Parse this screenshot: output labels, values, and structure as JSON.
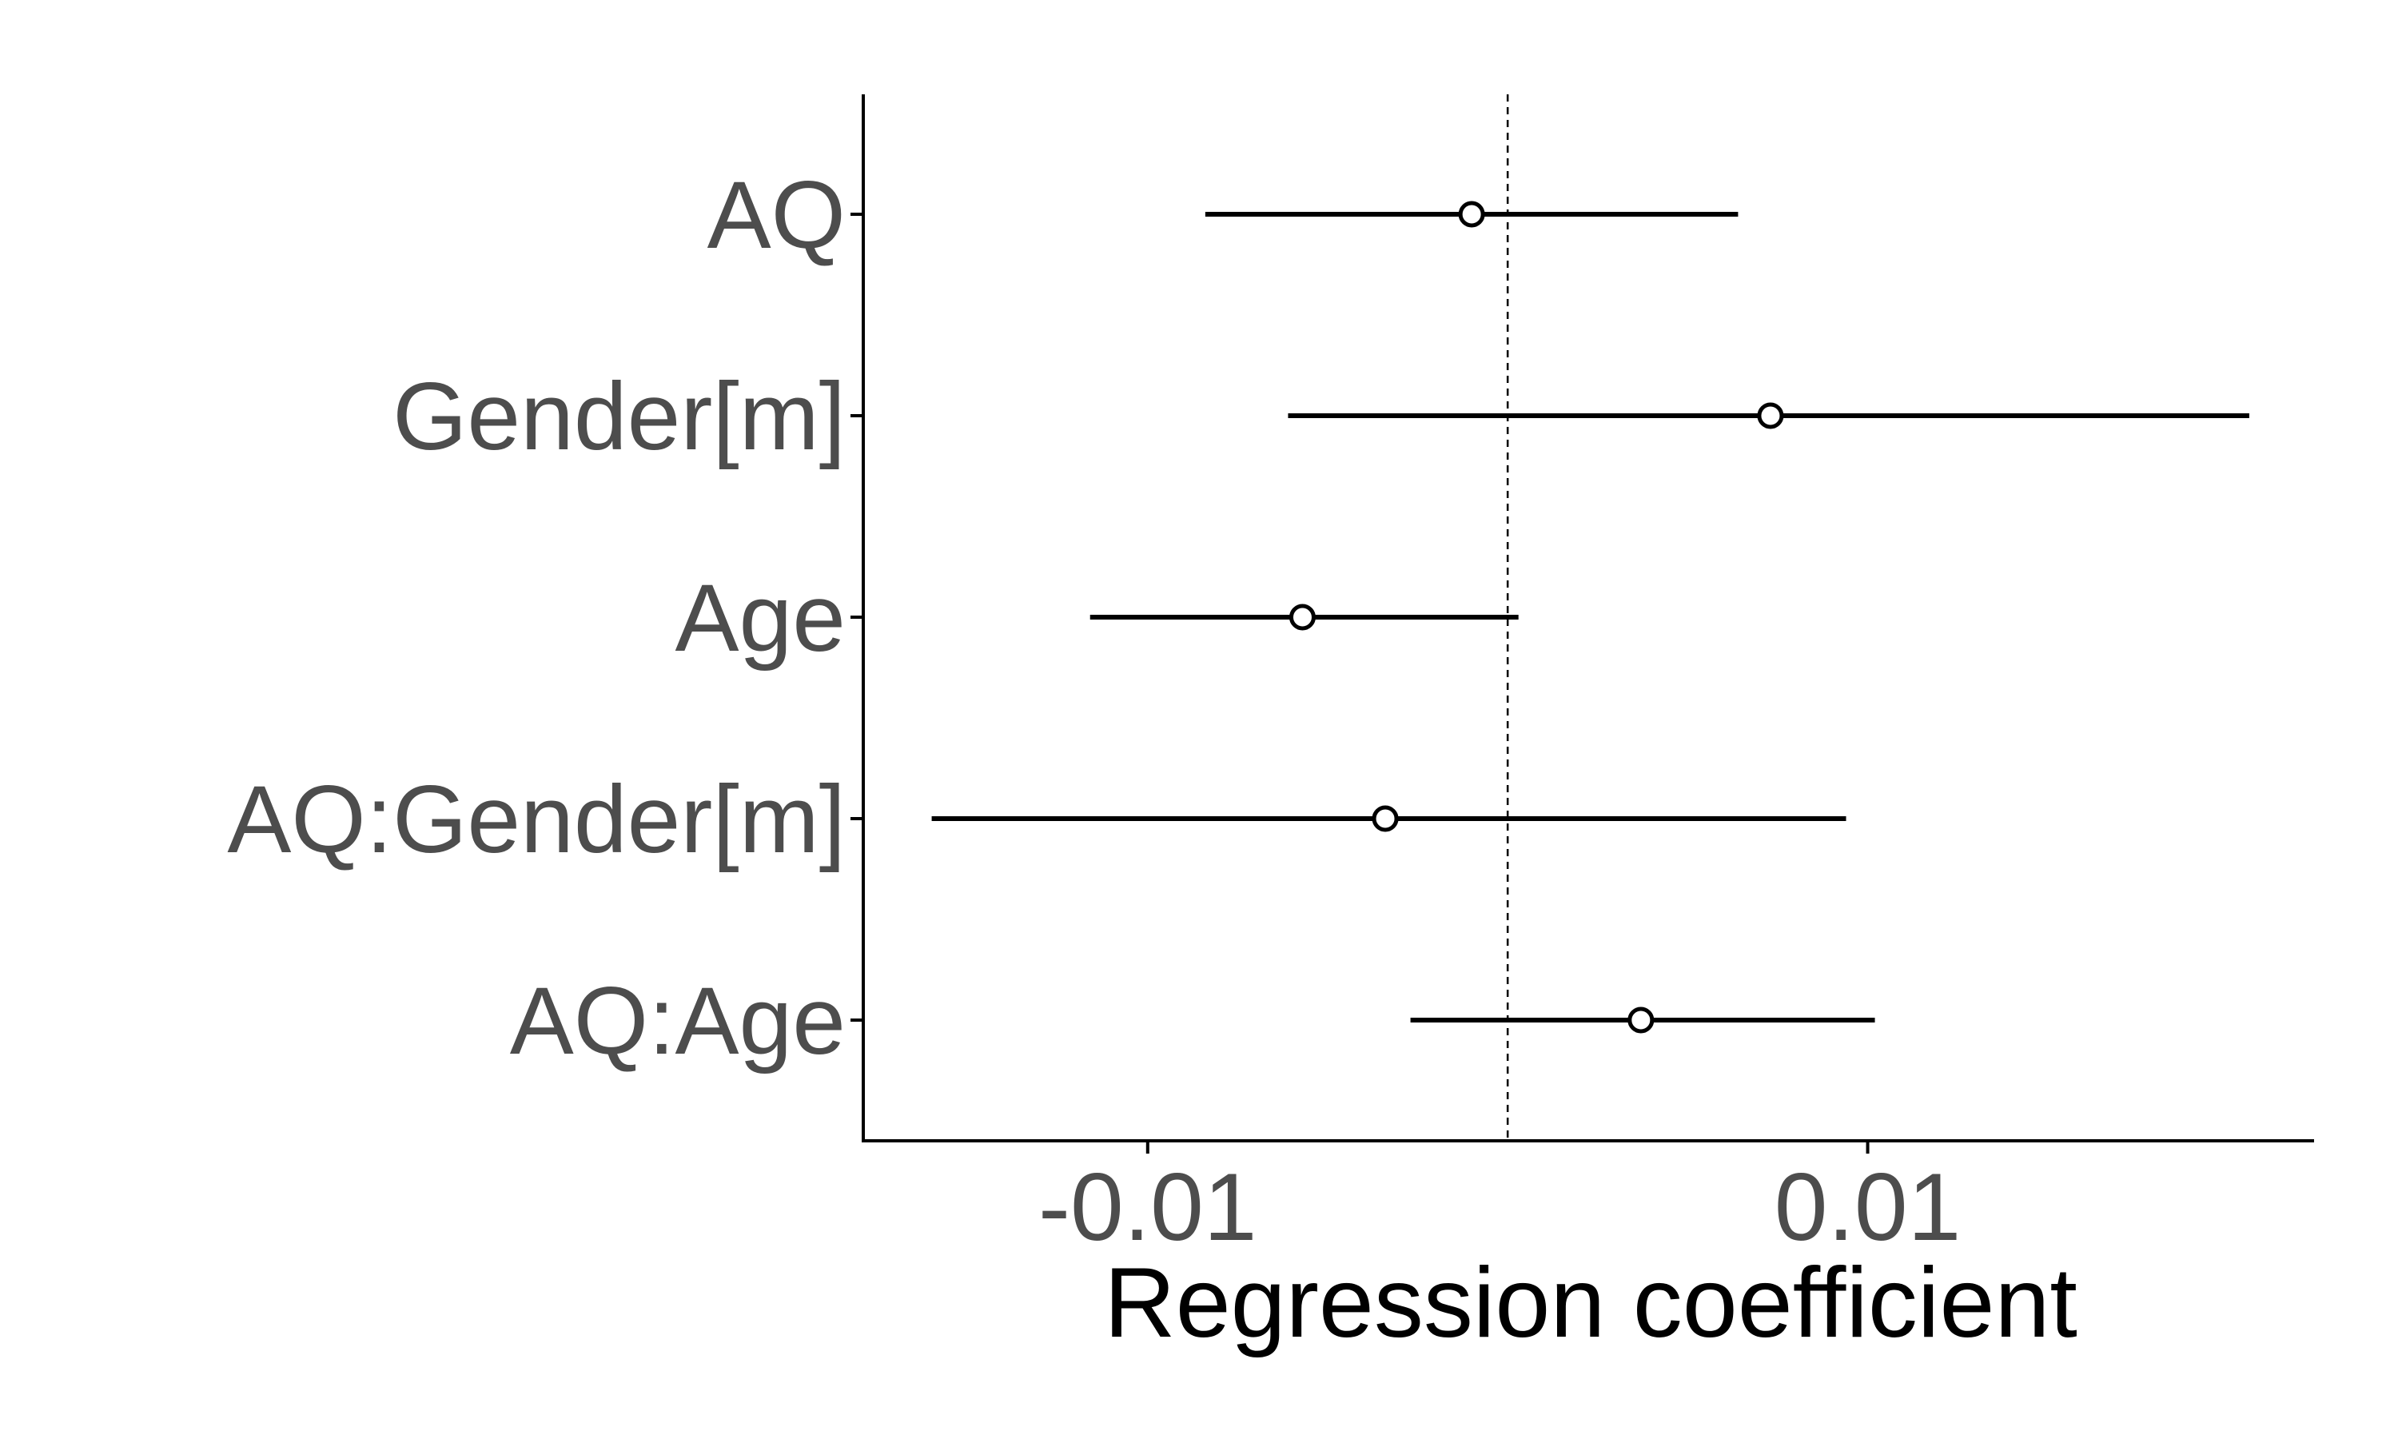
{
  "chart_data": {
    "type": "forest",
    "title": "",
    "xlabel": "Regression coefficient",
    "ylabel": "",
    "categories": [
      "AQ",
      "Gender[m]",
      "Age",
      "AQ:Gender[m]",
      "AQ:Age"
    ],
    "estimates": [
      -0.001,
      0.0073,
      -0.0057,
      -0.0034,
      0.0037
    ],
    "ci_lower": [
      -0.0084,
      -0.0061,
      -0.0116,
      -0.016,
      -0.0027
    ],
    "ci_upper": [
      0.0064,
      0.0206,
      0.0003,
      0.0094,
      0.0102
    ],
    "xlim": [
      -0.0179,
      0.0224
    ],
    "x_ticks": [
      -0.01,
      0.01
    ],
    "x_tick_labels": [
      "-0.01",
      "0.01"
    ],
    "reference_line": 0,
    "grid": false,
    "legend": "none",
    "colors": {
      "line": "#000000",
      "point_fill": "#ffffff",
      "tick_text": "#4d4d4d"
    }
  }
}
